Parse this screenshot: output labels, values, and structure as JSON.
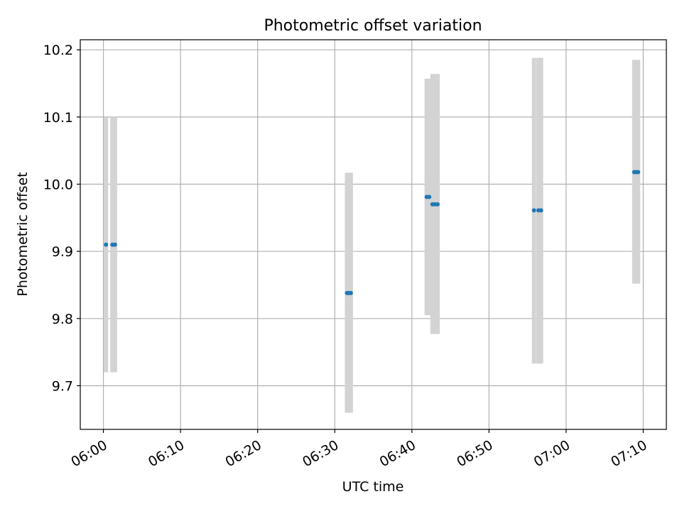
{
  "chart_data": {
    "type": "scatter",
    "title": "Photometric offset variation",
    "xlabel": "UTC time",
    "ylabel": "Photometric offset",
    "x_unit": "time (HH:MM)",
    "xlim": [
      "05:57",
      "07:13"
    ],
    "ylim": [
      9.635,
      10.215
    ],
    "x_ticks": [
      "06:00",
      "06:10",
      "06:20",
      "06:30",
      "06:40",
      "06:50",
      "07:00",
      "07:10"
    ],
    "y_ticks": [
      "9.7",
      "9.8",
      "9.9",
      "10.0",
      "10.1",
      "10.2"
    ],
    "grid": true,
    "point_color": "#1f77b4",
    "errorbar_color": "#d3d3d3",
    "points": [
      {
        "time": "06:00:20",
        "offset": 9.91,
        "err_low": 9.72,
        "err_high": 10.1
      },
      {
        "time": "06:01:10",
        "offset": 9.91,
        "err_low": 9.72,
        "err_high": 10.1
      },
      {
        "time": "06:01:30",
        "offset": 9.91,
        "err_low": 9.72,
        "err_high": 10.1
      },
      {
        "time": "06:31:35",
        "offset": 9.838,
        "err_low": 9.66,
        "err_high": 10.017
      },
      {
        "time": "06:31:50",
        "offset": 9.838,
        "err_low": 9.66,
        "err_high": 10.017
      },
      {
        "time": "06:32:05",
        "offset": 9.838,
        "err_low": 9.66,
        "err_high": 10.017
      },
      {
        "time": "06:41:55",
        "offset": 9.981,
        "err_low": 9.805,
        "err_high": 10.157
      },
      {
        "time": "06:42:15",
        "offset": 9.981,
        "err_low": 9.805,
        "err_high": 10.157
      },
      {
        "time": "06:42:40",
        "offset": 9.97,
        "err_low": 9.777,
        "err_high": 10.164
      },
      {
        "time": "06:43:00",
        "offset": 9.97,
        "err_low": 9.777,
        "err_high": 10.164
      },
      {
        "time": "06:43:20",
        "offset": 9.97,
        "err_low": 9.777,
        "err_high": 10.164
      },
      {
        "time": "06:55:50",
        "offset": 9.961,
        "err_low": 9.733,
        "err_high": 10.188
      },
      {
        "time": "06:56:25",
        "offset": 9.961,
        "err_low": 9.733,
        "err_high": 10.188
      },
      {
        "time": "06:56:45",
        "offset": 9.961,
        "err_low": 9.733,
        "err_high": 10.188
      },
      {
        "time": "07:08:50",
        "offset": 10.018,
        "err_low": 9.852,
        "err_high": 10.185
      },
      {
        "time": "07:09:05",
        "offset": 10.018,
        "err_low": 9.852,
        "err_high": 10.185
      },
      {
        "time": "07:09:20",
        "offset": 10.018,
        "err_low": 9.852,
        "err_high": 10.185
      }
    ]
  }
}
